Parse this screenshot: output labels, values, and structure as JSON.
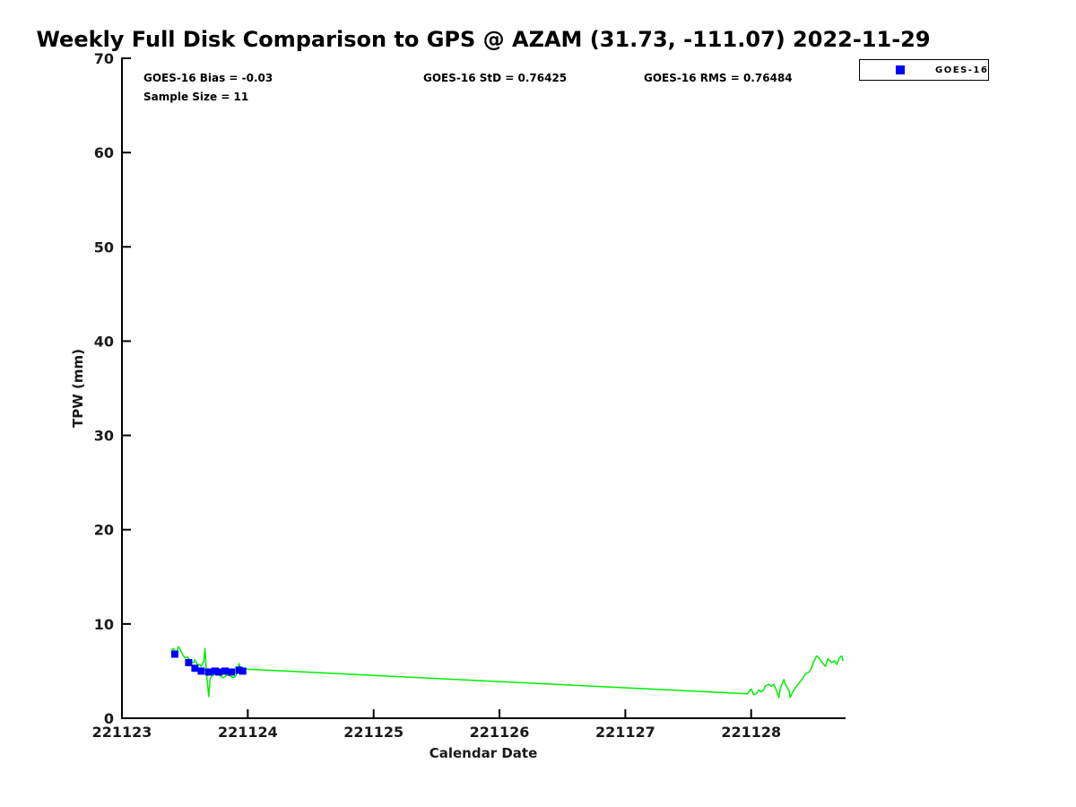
{
  "title": "Weekly Full Disk Comparison to GPS @ AZAM (31.73, -111.07) 2022-11-29",
  "annotations": {
    "bias": "GOES-16 Bias = -0.03",
    "std": "GOES-16 StD = 0.76425",
    "rms": "GOES-16 RMS = 0.76484",
    "sample_size": "Sample Size = 11"
  },
  "legend": {
    "position": "top-right",
    "items": [
      {
        "label": "GOES-16",
        "marker": "square",
        "marker_color": "#0000ff"
      }
    ]
  },
  "colors": {
    "gps_line": "#00ee00",
    "goes16_marker": "#0000ff",
    "axis": "#000000",
    "tick_label": "#1a1a1a",
    "background": "#ffffff"
  },
  "chart_data": {
    "type": "line",
    "title": "Weekly Full Disk Comparison to GPS @ AZAM (31.73, -111.07) 2022-11-29",
    "xlabel": "Calendar Date",
    "ylabel": "TPW (mm)",
    "xlim": [
      221123,
      221128.75
    ],
    "ylim": [
      0,
      70
    ],
    "xticks": [
      221123,
      221124,
      221125,
      221126,
      221127,
      221128
    ],
    "yticks": [
      0,
      10,
      20,
      30,
      40,
      50,
      60,
      70
    ],
    "grid": false,
    "legend_position": "top-right",
    "series": [
      {
        "name": "GPS",
        "type": "line",
        "color": "#00ee00",
        "x": [
          221123.39,
          221123.41,
          221123.43,
          221123.45,
          221123.48,
          221123.5,
          221123.52,
          221123.55,
          221123.57,
          221123.58,
          221123.6,
          221123.62,
          221123.63,
          221123.65,
          221123.66,
          221123.67,
          221123.68,
          221123.69,
          221123.7,
          221123.71,
          221123.73,
          221123.74,
          221123.76,
          221123.78,
          221123.8,
          221123.82,
          221123.83,
          221123.86,
          221123.88,
          221123.9,
          221123.92,
          221123.93,
          221123.94,
          221123.96,
          221123.99,
          221127.97,
          221128.0,
          221128.02,
          221128.04,
          221128.06,
          221128.08,
          221128.1,
          221128.11,
          221128.14,
          221128.16,
          221128.18,
          221128.2,
          221128.22,
          221128.23,
          221128.26,
          221128.27,
          221128.28,
          221128.3,
          221128.31,
          221128.33,
          221128.34,
          221128.36,
          221128.39,
          221128.41,
          221128.43,
          221128.46,
          221128.48,
          221128.49,
          221128.52,
          221128.54,
          221128.56,
          221128.59,
          221128.61,
          221128.64,
          221128.66,
          221128.68,
          221128.7,
          221128.72,
          221128.73
        ],
        "y": [
          7.2,
          7.4,
          6.9,
          7.6,
          6.8,
          6.4,
          6.5,
          6.0,
          5.9,
          6.2,
          5.7,
          5.7,
          5.5,
          6.0,
          7.4,
          5.2,
          3.7,
          2.3,
          4.1,
          4.4,
          4.6,
          4.9,
          4.8,
          4.5,
          4.3,
          4.4,
          4.6,
          4.5,
          4.3,
          4.4,
          4.9,
          5.8,
          5.3,
          5.2,
          5.2,
          2.6,
          3.1,
          2.5,
          2.6,
          3.0,
          2.8,
          3.0,
          3.4,
          3.6,
          3.4,
          3.6,
          3.0,
          2.2,
          3.1,
          4.1,
          3.7,
          3.4,
          3.0,
          2.2,
          2.8,
          3.0,
          3.4,
          3.9,
          4.2,
          4.7,
          4.9,
          5.3,
          5.8,
          6.6,
          6.4,
          6.0,
          5.5,
          6.3,
          5.9,
          6.1,
          5.7,
          6.4,
          6.6,
          6.1
        ]
      },
      {
        "name": "GOES-16",
        "type": "scatter",
        "marker": "square",
        "color": "#0000ff",
        "x": [
          221123.42,
          221123.53,
          221123.58,
          221123.63,
          221123.69,
          221123.74,
          221123.77,
          221123.82,
          221123.87,
          221123.93,
          221123.96
        ],
        "y": [
          6.8,
          5.9,
          5.3,
          5.0,
          4.9,
          5.0,
          4.9,
          5.0,
          4.9,
          5.1,
          5.0
        ]
      }
    ]
  }
}
